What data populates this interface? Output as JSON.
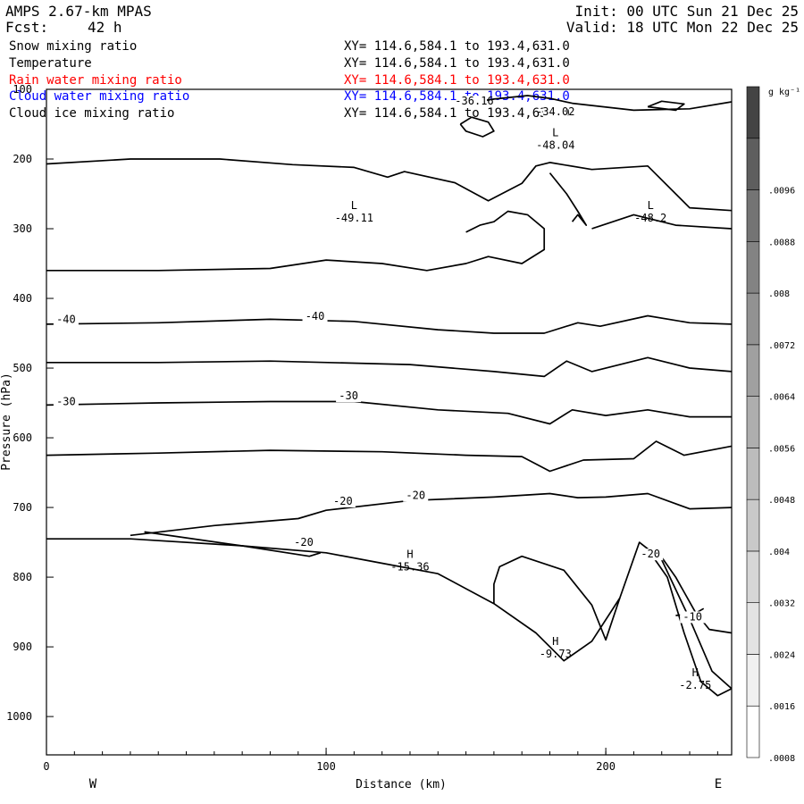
{
  "header": {
    "model": "AMPS 2.67-km MPAS",
    "fcst_label": "Fcst:",
    "fcst_value": "42 h",
    "init": "Init: 00 UTC Sun 21 Dec 25",
    "valid": "Valid: 18 UTC Mon 22 Dec 25"
  },
  "fields": [
    {
      "name": "Snow mixing ratio",
      "xy": "XY= 114.6,584.1 to 193.4,631.0",
      "color": "#000000"
    },
    {
      "name": "Temperature",
      "xy": "XY= 114.6,584.1 to 193.4,631.0",
      "color": "#000000"
    },
    {
      "name": "Rain water mixing ratio",
      "xy": "XY= 114.6,584.1 to 193.4,631.0",
      "color": "#ff0000"
    },
    {
      "name": "Cloud water mixing ratio",
      "xy": "XY= 114.6,584.1 to 193.4,631.0",
      "color": "#0000ff"
    },
    {
      "name": "Cloud ice mixing ratio",
      "xy": "XY= 114.6,584.1 to 193.4,631.0",
      "color": "#000000"
    }
  ],
  "chart_data": {
    "type": "contour",
    "xlabel": "Distance (km)",
    "ylabel": "Pressure (hPa)",
    "xlim": [
      0,
      245
    ],
    "ylim": [
      1055,
      100
    ],
    "x_ticks": [
      0,
      100,
      200
    ],
    "y_ticks": [
      100,
      200,
      300,
      400,
      500,
      600,
      700,
      800,
      900,
      1000
    ],
    "left_label": "W",
    "right_label": "E",
    "colorbar": {
      "unit": "g kg⁻¹",
      "tick_labels": [
        ".0096",
        ".0088",
        ".008",
        ".0072",
        ".0064",
        ".0056",
        ".0048",
        ".004",
        ".0032",
        ".0024",
        ".0016",
        ".0008"
      ],
      "n_bins": 13,
      "shades": [
        "#ffffff",
        "#f0f0f0",
        "#e3e3e3",
        "#d6d6d6",
        "#c9c9c9",
        "#bcbcbc",
        "#aeaeae",
        "#a0a0a0",
        "#929292",
        "#838383",
        "#747474",
        "#5e5e5e",
        "#444444"
      ]
    },
    "contour_labels": [
      {
        "text": "-40",
        "x": 7,
        "p": 435
      },
      {
        "text": "-40",
        "x": 96,
        "p": 431
      },
      {
        "text": "-30",
        "x": 7,
        "p": 553
      },
      {
        "text": "-30",
        "x": 108,
        "p": 545
      },
      {
        "text": "-20",
        "x": 106,
        "p": 696
      },
      {
        "text": "-20",
        "x": 132,
        "p": 688
      },
      {
        "text": "-20",
        "x": 92,
        "p": 755
      },
      {
        "text": "-20",
        "x": 216,
        "p": 772
      },
      {
        "text": "-10",
        "x": 231,
        "p": 862
      },
      {
        "text": "-36.16",
        "x": 153,
        "p": 122
      },
      {
        "text": "-34.02",
        "x": 182,
        "p": 137
      }
    ],
    "extrema": [
      {
        "kind": "L",
        "value": "-49.11",
        "x": 110,
        "p": 290
      },
      {
        "kind": "L",
        "value": "-48.04",
        "x": 182,
        "p": 185
      },
      {
        "kind": "L",
        "value": "-48.2",
        "x": 216,
        "p": 290
      },
      {
        "kind": "H",
        "value": "-15.36",
        "x": 130,
        "p": 790
      },
      {
        "kind": "H",
        "value": "-9.73",
        "x": 182,
        "p": 915
      },
      {
        "kind": "H",
        "value": "-2.75",
        "x": 232,
        "p": 960
      }
    ],
    "contours": [
      {
        "id": "t-upper-200",
        "points": [
          [
            0,
            207
          ],
          [
            30,
            200
          ],
          [
            62,
            200
          ],
          [
            88,
            208
          ],
          [
            110,
            212
          ],
          [
            122,
            226
          ],
          [
            128,
            218
          ],
          [
            146,
            234
          ],
          [
            158,
            260
          ],
          [
            170,
            235
          ],
          [
            175,
            210
          ],
          [
            180,
            205
          ],
          [
            195,
            215
          ],
          [
            215,
            210
          ],
          [
            230,
            270
          ],
          [
            245,
            274
          ]
        ]
      },
      {
        "id": "t-dome",
        "points": [
          [
            0,
            360
          ],
          [
            40,
            360
          ],
          [
            80,
            357
          ],
          [
            100,
            345
          ],
          [
            120,
            350
          ],
          [
            136,
            360
          ],
          [
            150,
            350
          ],
          [
            158,
            340
          ],
          [
            170,
            350
          ],
          [
            178,
            330
          ],
          [
            178,
            300
          ],
          [
            172,
            280
          ],
          [
            165,
            275
          ],
          [
            160,
            290
          ],
          [
            155,
            295
          ],
          [
            150,
            305
          ]
        ]
      },
      {
        "id": "t-upper-right",
        "points": [
          [
            195,
            300
          ],
          [
            210,
            280
          ],
          [
            225,
            295
          ],
          [
            245,
            300
          ]
        ]
      },
      {
        "id": "t-small-ring",
        "points": [
          [
            148,
            150
          ],
          [
            152,
            140
          ],
          [
            158,
            147
          ],
          [
            160,
            160
          ],
          [
            156,
            168
          ],
          [
            150,
            160
          ],
          [
            148,
            150
          ]
        ]
      },
      {
        "id": "t-top-right-ring",
        "points": [
          [
            215,
            125
          ],
          [
            220,
            117
          ],
          [
            228,
            121
          ],
          [
            225,
            130
          ],
          [
            215,
            125
          ]
        ]
      },
      {
        "id": "t-top-arc",
        "points": [
          [
            150,
            120
          ],
          [
            160,
            114
          ],
          [
            172,
            109
          ],
          [
            180,
            113
          ],
          [
            188,
            120
          ],
          [
            210,
            130
          ],
          [
            230,
            128
          ],
          [
            245,
            118
          ]
        ]
      },
      {
        "id": "t-neg40",
        "points": [
          [
            0,
            437
          ],
          [
            40,
            435
          ],
          [
            80,
            430
          ],
          [
            110,
            433
          ],
          [
            140,
            445
          ],
          [
            160,
            450
          ],
          [
            178,
            450
          ],
          [
            190,
            435
          ],
          [
            198,
            440
          ],
          [
            215,
            425
          ],
          [
            230,
            435
          ],
          [
            245,
            437
          ]
        ]
      },
      {
        "id": "t-neg35",
        "points": [
          [
            0,
            492
          ],
          [
            40,
            492
          ],
          [
            80,
            490
          ],
          [
            130,
            495
          ],
          [
            160,
            505
          ],
          [
            178,
            512
          ],
          [
            186,
            490
          ],
          [
            195,
            505
          ],
          [
            215,
            485
          ],
          [
            230,
            500
          ],
          [
            245,
            505
          ]
        ]
      },
      {
        "id": "t-neg30",
        "points": [
          [
            0,
            553
          ],
          [
            40,
            550
          ],
          [
            80,
            548
          ],
          [
            110,
            548
          ],
          [
            140,
            560
          ],
          [
            165,
            565
          ],
          [
            180,
            580
          ],
          [
            188,
            560
          ],
          [
            200,
            568
          ],
          [
            215,
            560
          ],
          [
            230,
            570
          ],
          [
            245,
            570
          ]
        ]
      },
      {
        "id": "t-neg25",
        "points": [
          [
            0,
            625
          ],
          [
            40,
            622
          ],
          [
            80,
            618
          ],
          [
            120,
            620
          ],
          [
            150,
            625
          ],
          [
            170,
            627
          ],
          [
            180,
            648
          ],
          [
            192,
            632
          ],
          [
            210,
            630
          ],
          [
            218,
            605
          ],
          [
            228,
            625
          ],
          [
            245,
            612
          ]
        ]
      },
      {
        "id": "t-neg20",
        "points": [
          [
            0,
            745
          ],
          [
            30,
            745
          ],
          [
            70,
            755
          ],
          [
            100,
            765
          ],
          [
            120,
            780
          ],
          [
            140,
            795
          ],
          [
            160,
            838
          ],
          [
            175,
            880
          ],
          [
            185,
            920
          ],
          [
            195,
            892
          ],
          [
            205,
            830
          ],
          [
            212,
            750
          ],
          [
            220,
            775
          ],
          [
            230,
            860
          ],
          [
            238,
            935
          ],
          [
            245,
            960
          ]
        ]
      },
      {
        "id": "t-neg20-upper",
        "points": [
          [
            30,
            740
          ],
          [
            60,
            726
          ],
          [
            90,
            716
          ],
          [
            100,
            704
          ],
          [
            130,
            690
          ],
          [
            160,
            685
          ],
          [
            180,
            680
          ],
          [
            190,
            686
          ],
          [
            200,
            685
          ],
          [
            215,
            680
          ],
          [
            230,
            702
          ],
          [
            245,
            700
          ]
        ]
      },
      {
        "id": "t-neg20-tongue",
        "points": [
          [
            35,
            735
          ],
          [
            70,
            755
          ],
          [
            94,
            770
          ],
          [
            98,
            765
          ]
        ]
      },
      {
        "id": "t-warm-bulge",
        "points": [
          [
            160,
            838
          ],
          [
            160,
            810
          ],
          [
            162,
            785
          ],
          [
            170,
            770
          ],
          [
            185,
            790
          ],
          [
            195,
            840
          ],
          [
            200,
            890
          ],
          [
            205,
            830
          ]
        ]
      },
      {
        "id": "t-neg10",
        "points": [
          [
            218,
            760
          ],
          [
            225,
            800
          ],
          [
            232,
            850
          ],
          [
            237,
            875
          ],
          [
            245,
            880
          ]
        ]
      },
      {
        "id": "t-neg10-lobe",
        "points": [
          [
            225,
            855
          ],
          [
            232,
            852
          ],
          [
            235,
            845
          ]
        ]
      },
      {
        "id": "t-neg5",
        "points": [
          [
            215,
            760
          ],
          [
            222,
            800
          ],
          [
            228,
            880
          ],
          [
            234,
            950
          ],
          [
            240,
            970
          ],
          [
            245,
            960
          ]
        ]
      },
      {
        "id": "t-cold-fold",
        "points": [
          [
            180,
            220
          ],
          [
            186,
            250
          ],
          [
            190,
            275
          ],
          [
            193,
            295
          ],
          [
            190,
            280
          ],
          [
            188,
            290
          ]
        ]
      }
    ]
  }
}
